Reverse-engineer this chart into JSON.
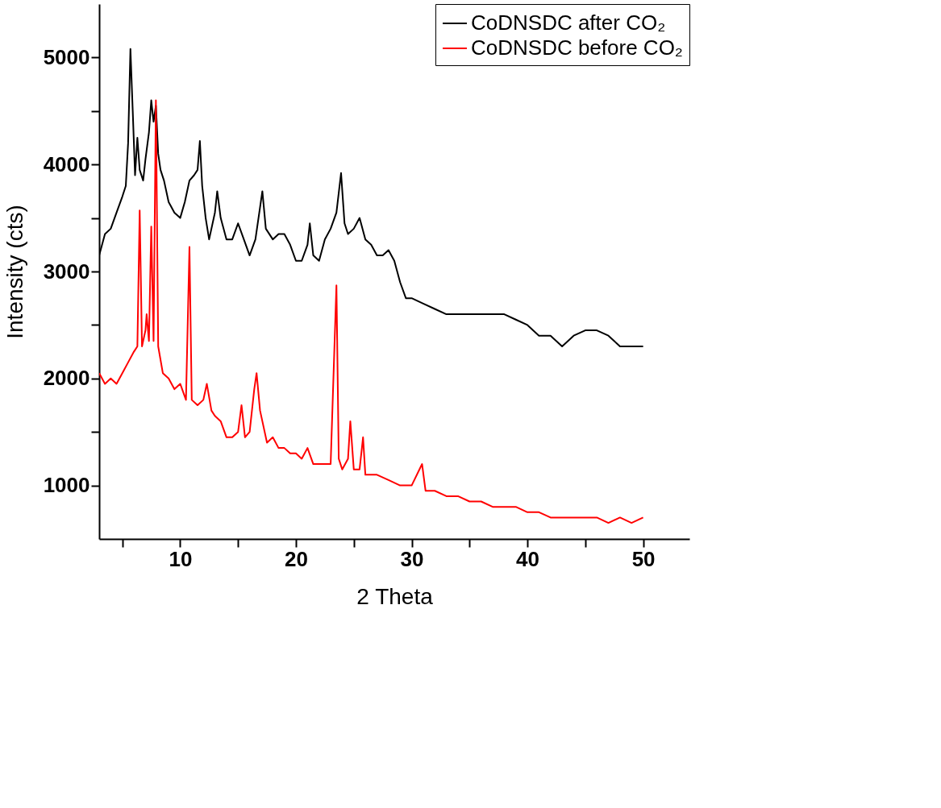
{
  "chart_data": {
    "type": "line",
    "xlabel": "2 Theta",
    "ylabel": "Intensity (cts)",
    "xlim": [
      3,
      54
    ],
    "ylim": [
      500,
      5500
    ],
    "xticks": [
      {
        "value": 5,
        "label": null
      },
      10,
      {
        "value": 15,
        "label": null
      },
      20,
      {
        "value": 25,
        "label": null
      },
      30,
      {
        "value": 35,
        "label": null
      },
      40,
      {
        "value": 45,
        "label": null
      },
      50
    ],
    "yticks": [
      1000,
      {
        "value": 1500,
        "label": null
      },
      2000,
      {
        "value": 2500,
        "label": null
      },
      3000,
      {
        "value": 3500,
        "label": null
      },
      4000,
      {
        "value": 4500,
        "label": null
      },
      5000
    ],
    "grid": false,
    "legend": "top right",
    "marker": "none",
    "line_style": "solid",
    "series": [
      {
        "name": "CoDNSDC after CO₂",
        "color": "#000000",
        "x": [
          3.0,
          3.5,
          4.0,
          4.5,
          5.0,
          5.3,
          5.5,
          5.7,
          5.9,
          6.1,
          6.3,
          6.5,
          6.8,
          7.0,
          7.3,
          7.5,
          7.7,
          7.9,
          8.1,
          8.3,
          8.6,
          9.0,
          9.5,
          10.0,
          10.4,
          10.8,
          11.2,
          11.5,
          11.7,
          11.9,
          12.2,
          12.5,
          13.0,
          13.2,
          13.5,
          14.0,
          14.5,
          15.0,
          15.5,
          16.0,
          16.5,
          16.9,
          17.1,
          17.4,
          18.0,
          18.5,
          19.0,
          19.5,
          20.0,
          20.5,
          21.0,
          21.2,
          21.5,
          22.0,
          22.5,
          23.0,
          23.5,
          23.9,
          24.2,
          24.5,
          25.0,
          25.5,
          26.0,
          26.5,
          27.0,
          27.5,
          28.0,
          28.5,
          29.0,
          29.5,
          30.0,
          31.0,
          32.0,
          33.0,
          34.0,
          35.0,
          36.0,
          37.0,
          38.0,
          39.0,
          40.0,
          41.0,
          42.0,
          43.0,
          44.0,
          45.0,
          46.0,
          47.0,
          48.0,
          49.0,
          50.0
        ],
        "values": [
          3150,
          3350,
          3400,
          3550,
          3700,
          3800,
          4200,
          5080,
          4500,
          3900,
          4250,
          3950,
          3850,
          4050,
          4300,
          4600,
          4400,
          4550,
          4100,
          3950,
          3850,
          3650,
          3550,
          3500,
          3650,
          3850,
          3900,
          3950,
          4220,
          3800,
          3500,
          3300,
          3550,
          3750,
          3500,
          3300,
          3300,
          3450,
          3300,
          3150,
          3300,
          3600,
          3750,
          3400,
          3300,
          3350,
          3350,
          3250,
          3100,
          3100,
          3250,
          3450,
          3150,
          3100,
          3300,
          3400,
          3550,
          3920,
          3450,
          3350,
          3400,
          3500,
          3300,
          3250,
          3150,
          3150,
          3200,
          3100,
          2900,
          2750,
          2750,
          2700,
          2650,
          2600,
          2600,
          2600,
          2600,
          2600,
          2600,
          2550,
          2500,
          2400,
          2400,
          2300,
          2400,
          2450,
          2450,
          2400,
          2300,
          2300,
          2300
        ]
      },
      {
        "name": "CoDNSDC before CO₂",
        "color": "#ff0000",
        "x": [
          3.0,
          3.5,
          4.0,
          4.5,
          5.0,
          5.5,
          6.0,
          6.3,
          6.5,
          6.7,
          7.0,
          7.1,
          7.3,
          7.5,
          7.7,
          7.9,
          8.1,
          8.5,
          9.0,
          9.5,
          10.0,
          10.5,
          10.8,
          11.0,
          11.5,
          12.0,
          12.3,
          12.7,
          13.0,
          13.5,
          14.0,
          14.5,
          15.0,
          15.3,
          15.6,
          16.0,
          16.4,
          16.6,
          16.9,
          17.5,
          18.0,
          18.5,
          19.0,
          19.5,
          20.0,
          20.5,
          21.0,
          21.5,
          22.0,
          22.5,
          23.0,
          23.5,
          23.7,
          24.0,
          24.5,
          24.7,
          25.0,
          25.5,
          25.8,
          26.0,
          26.5,
          27.0,
          28.0,
          29.0,
          30.0,
          30.9,
          31.2,
          32.0,
          33.0,
          34.0,
          35.0,
          36.0,
          37.0,
          38.0,
          39.0,
          40.0,
          41.0,
          42.0,
          43.0,
          44.0,
          45.0,
          46.0,
          47.0,
          48.0,
          49.0,
          50.0
        ],
        "values": [
          2050,
          1950,
          2000,
          1950,
          2050,
          2150,
          2250,
          2300,
          3570,
          2300,
          2450,
          2600,
          2350,
          3420,
          2350,
          4600,
          2300,
          2050,
          2000,
          1900,
          1950,
          1800,
          3230,
          1800,
          1750,
          1800,
          1950,
          1700,
          1650,
          1600,
          1450,
          1450,
          1500,
          1750,
          1450,
          1500,
          1900,
          2050,
          1700,
          1400,
          1450,
          1350,
          1350,
          1300,
          1300,
          1250,
          1350,
          1200,
          1200,
          1200,
          1200,
          2870,
          1250,
          1150,
          1250,
          1600,
          1150,
          1150,
          1450,
          1100,
          1100,
          1100,
          1050,
          1000,
          1000,
          1200,
          950,
          950,
          900,
          900,
          850,
          850,
          800,
          800,
          800,
          750,
          750,
          700,
          700,
          700,
          700,
          700,
          650,
          700,
          650,
          700
        ]
      }
    ]
  }
}
